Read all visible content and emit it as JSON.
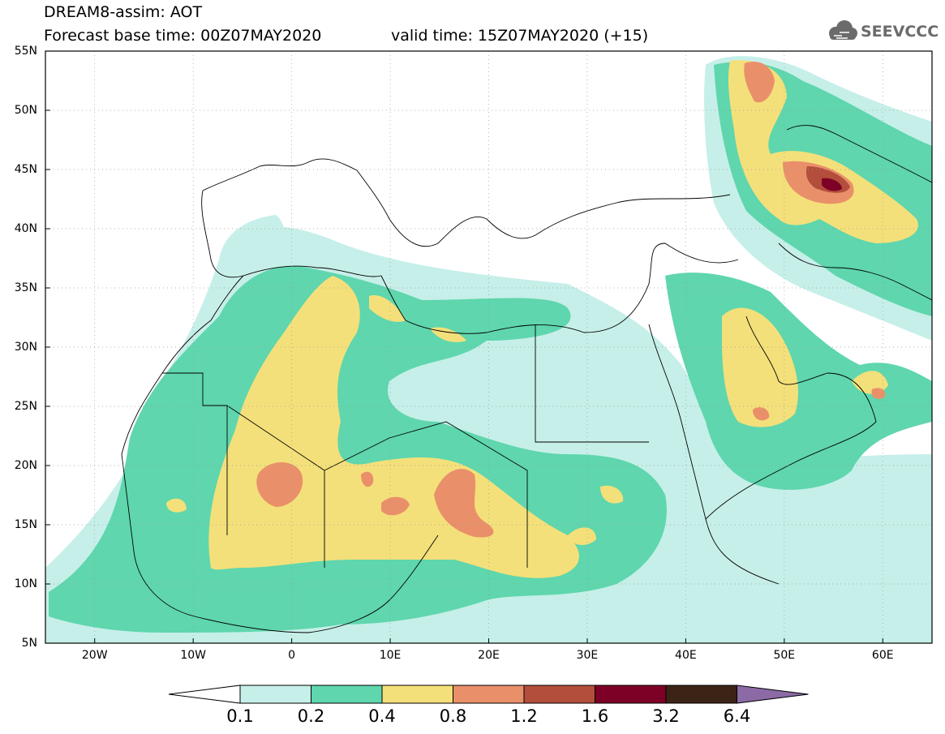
{
  "header": {
    "title_line1": "DREAM8-assim: AOT",
    "title_line2": "Forecast base time: 00Z07MAY2020",
    "valid_time": "valid time: 15Z07MAY2020 (+15)",
    "logo_text": "SEEVCCC",
    "logo_icon": "cloud-icon"
  },
  "map": {
    "variable": "AOT",
    "model": "DREAM8-assim",
    "lat_labels": [
      "55N",
      "50N",
      "45N",
      "40N",
      "35N",
      "30N",
      "25N",
      "20N",
      "15N",
      "10N",
      "5N"
    ],
    "lon_labels": [
      "20W",
      "10W",
      "0",
      "10E",
      "20E",
      "30E",
      "40E",
      "50E",
      "60E"
    ],
    "lat_range": [
      5,
      55
    ],
    "lon_range": [
      -25,
      65
    ],
    "grid": true
  },
  "colorbar": {
    "labels": [
      "0.1",
      "0.2",
      "0.4",
      "0.8",
      "1.2",
      "1.6",
      "3.2",
      "6.4"
    ],
    "colors": [
      "#ffffff",
      "#c6efe9",
      "#5fd6ad",
      "#f4e07a",
      "#e9906a",
      "#b44e3c",
      "#7d0026",
      "#3b2416",
      "#8c6aa6"
    ]
  }
}
